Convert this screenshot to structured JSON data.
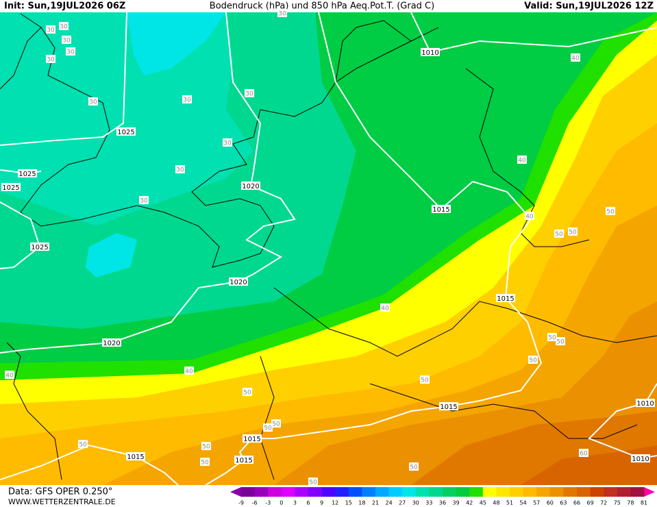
{
  "header": {
    "init": "Init: Sun,19JUL2026 06Z",
    "title": "Bodendruck (hPa) und 850 hPa Aeq.Pot.T. (Grad C)",
    "valid": "Valid: Sun,19JUL2026 12Z"
  },
  "footer": {
    "data_source": "Data: GFS OPER 0.250°",
    "website": "WWW.WETTERZENTRALE.DE"
  },
  "legend": {
    "ticks": [
      -9,
      -6,
      -3,
      0,
      3,
      6,
      9,
      12,
      15,
      18,
      21,
      24,
      27,
      30,
      33,
      36,
      39,
      42,
      45,
      48,
      51,
      54,
      57,
      60,
      63,
      66,
      69,
      72,
      75,
      78,
      81
    ],
    "colors": [
      "#7a0099",
      "#9900bb",
      "#cc00dd",
      "#dd00ff",
      "#aa00ff",
      "#8000ff",
      "#5000ff",
      "#2020ff",
      "#0050ff",
      "#0080ff",
      "#00a8ff",
      "#00ccff",
      "#00e6e6",
      "#00e0b0",
      "#00d890",
      "#00d060",
      "#00cc40",
      "#20e000",
      "#ffff00",
      "#ffe600",
      "#ffd000",
      "#ffbb00",
      "#f5a500",
      "#eb9000",
      "#e07800",
      "#d86400",
      "#cc4400",
      "#c03020",
      "#b02030",
      "#a01040"
    ]
  },
  "isobar_labels": [
    "1010",
    "1025",
    "1025",
    "1025",
    "1020",
    "1015",
    "1025",
    "1020",
    "1015",
    "1020",
    "1015",
    "1010",
    "1015",
    "1015",
    "1015",
    "1010"
  ],
  "thetae_labels": [
    "30",
    "30",
    "30",
    "30",
    "30",
    "30",
    "30",
    "30",
    "30",
    "30",
    "30",
    "30",
    "40",
    "40",
    "40",
    "40",
    "40",
    "40",
    "50",
    "50",
    "50",
    "50",
    "50",
    "50",
    "50",
    "50",
    "50",
    "50",
    "50",
    "50",
    "50",
    "50",
    "50",
    "50",
    "60"
  ]
}
